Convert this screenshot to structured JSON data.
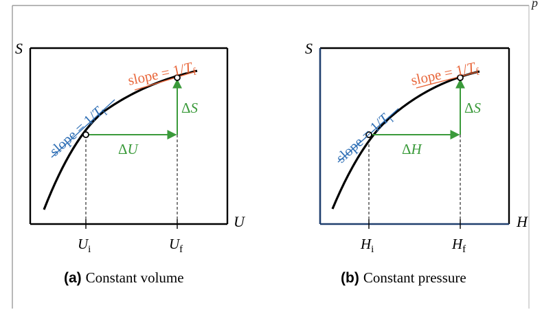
{
  "header": {
    "corner_text": "p"
  },
  "panel_a": {
    "y_axis": "S",
    "x_axis": "U",
    "slope_initial": {
      "prefix": "slope = 1/",
      "symbol": "T",
      "sub": "i"
    },
    "slope_final": {
      "prefix": "slope = 1/",
      "symbol": "T",
      "sub": "f"
    },
    "delta_x": {
      "delta": "Δ",
      "symbol": "U"
    },
    "delta_y": {
      "delta": "Δ",
      "symbol": "S"
    },
    "tick_initial": {
      "symbol": "U",
      "sub": "i"
    },
    "tick_final": {
      "symbol": "U",
      "sub": "f"
    },
    "caption_label": "(a)",
    "caption_text": "Constant volume"
  },
  "panel_b": {
    "y_axis": "S",
    "x_axis": "H",
    "slope_initial": {
      "prefix": "slope = 1/",
      "symbol": "T",
      "sub": "i"
    },
    "slope_final": {
      "prefix": "slope = 1/",
      "symbol": "T",
      "sub": "f"
    },
    "delta_x": {
      "delta": "Δ",
      "symbol": "H"
    },
    "delta_y": {
      "delta": "Δ",
      "symbol": "S"
    },
    "tick_initial": {
      "symbol": "H",
      "sub": "i"
    },
    "tick_final": {
      "symbol": "H",
      "sub": "f"
    },
    "caption_label": "(b)",
    "caption_text": "Constant pressure"
  },
  "colors": {
    "curve": "#000000",
    "tangent_initial": "#2f6fb5",
    "tangent_final": "#e8663a",
    "arrows": "#3a9a3a",
    "frame_b_accent": "#1f3f6e"
  }
}
